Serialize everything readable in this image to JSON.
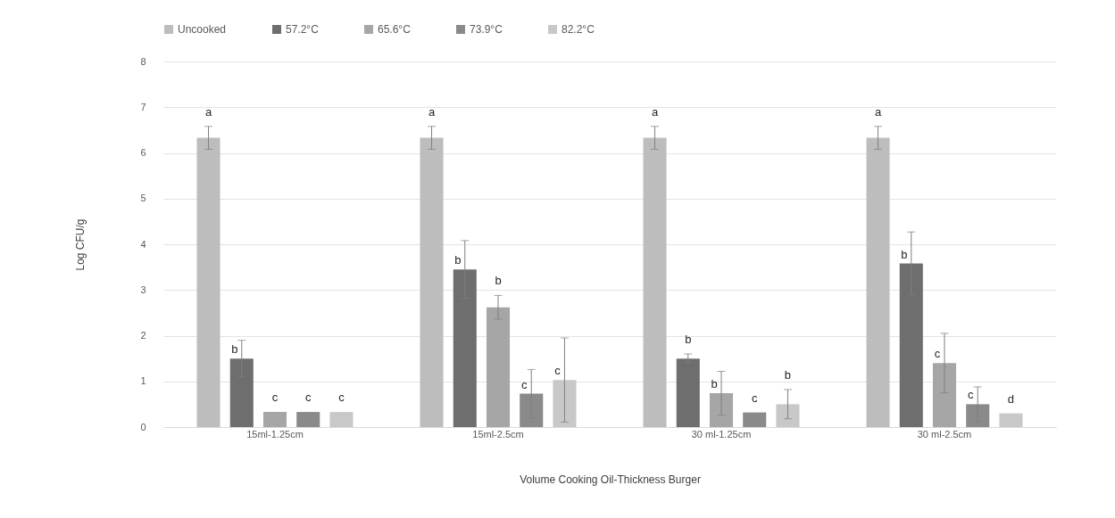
{
  "chart_data": {
    "type": "bar",
    "xlabel": "Volume Cooking Oil-Thickness Burger",
    "ylabel": "Log CFU/g",
    "categories": [
      "15ml-1.25cm",
      "15ml-2.5cm",
      "30 ml-1.25cm",
      "30 ml-2.5cm"
    ],
    "series": [
      {
        "name": "Uncooked",
        "color": "#bdbdbd",
        "values": [
          6.33,
          6.33,
          6.33,
          6.33
        ],
        "errors": [
          0.25,
          0.25,
          0.25,
          0.25
        ],
        "value_labels": [
          "a",
          "a",
          "a",
          "a"
        ]
      },
      {
        "name": "57.2°C",
        "color": "#6e6e6e",
        "values": [
          1.5,
          3.45,
          1.5,
          3.58
        ],
        "errors": [
          0.4,
          0.63,
          0.1,
          0.69
        ],
        "value_labels": [
          "b",
          "b",
          "b",
          "b"
        ]
      },
      {
        "name": "65.6°C",
        "color": "#a6a6a6",
        "values": [
          0.33,
          2.62,
          0.74,
          1.4
        ],
        "errors": [
          null,
          0.26,
          0.48,
          0.65
        ],
        "value_labels": [
          "c",
          "b",
          "b",
          "c"
        ]
      },
      {
        "name": "73.9°C",
        "color": "#8a8a8a",
        "values": [
          0.33,
          0.73,
          0.32,
          0.5
        ],
        "errors": [
          null,
          0.53,
          null,
          0.38
        ],
        "value_labels": [
          "c",
          "c",
          "c",
          "c"
        ]
      },
      {
        "name": "82.2°C",
        "color": "#c8c8c8",
        "values": [
          0.33,
          1.03,
          0.5,
          0.3
        ],
        "errors": [
          null,
          0.92,
          0.32,
          null
        ],
        "value_labels": [
          "c",
          "c",
          "b",
          "d"
        ]
      }
    ],
    "ylim": [
      0,
      8
    ],
    "yticks": [
      0,
      1,
      2,
      3,
      4,
      5,
      6,
      7,
      8
    ],
    "grid": "y",
    "legend": "top"
  }
}
